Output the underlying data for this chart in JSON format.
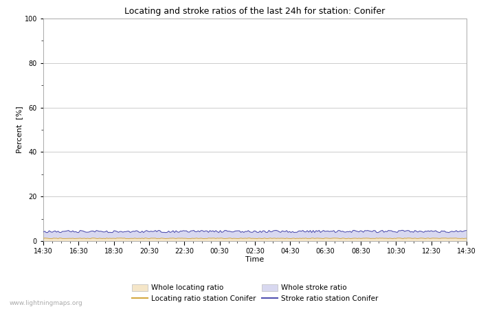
{
  "title": "Locating and stroke ratios of the last 24h for station: Conifer",
  "xlabel": "Time",
  "ylabel": "Percent  [%]",
  "xlim_labels": [
    "14:30",
    "16:30",
    "18:30",
    "20:30",
    "22:30",
    "00:30",
    "02:30",
    "04:30",
    "06:30",
    "08:30",
    "10:30",
    "12:30",
    "14:30"
  ],
  "ylim": [
    0,
    100
  ],
  "yticks": [
    0,
    20,
    40,
    60,
    80,
    100
  ],
  "yticks_minor": [
    10,
    30,
    50,
    70,
    90
  ],
  "bg_color": "#ffffff",
  "plot_bg_color": "#ffffff",
  "grid_color": "#cccccc",
  "whole_locating_fill_color": "#f5e6c8",
  "whole_stroke_fill_color": "#d8d8f0",
  "locating_line_color": "#d4a840",
  "stroke_line_color": "#5050b0",
  "watermark": "www.lightningmaps.org",
  "whole_locating_value": 1.2,
  "whole_stroke_value": 4.2,
  "station_locating_value": 1.2,
  "station_stroke_value": 4.2,
  "n_points": 288
}
